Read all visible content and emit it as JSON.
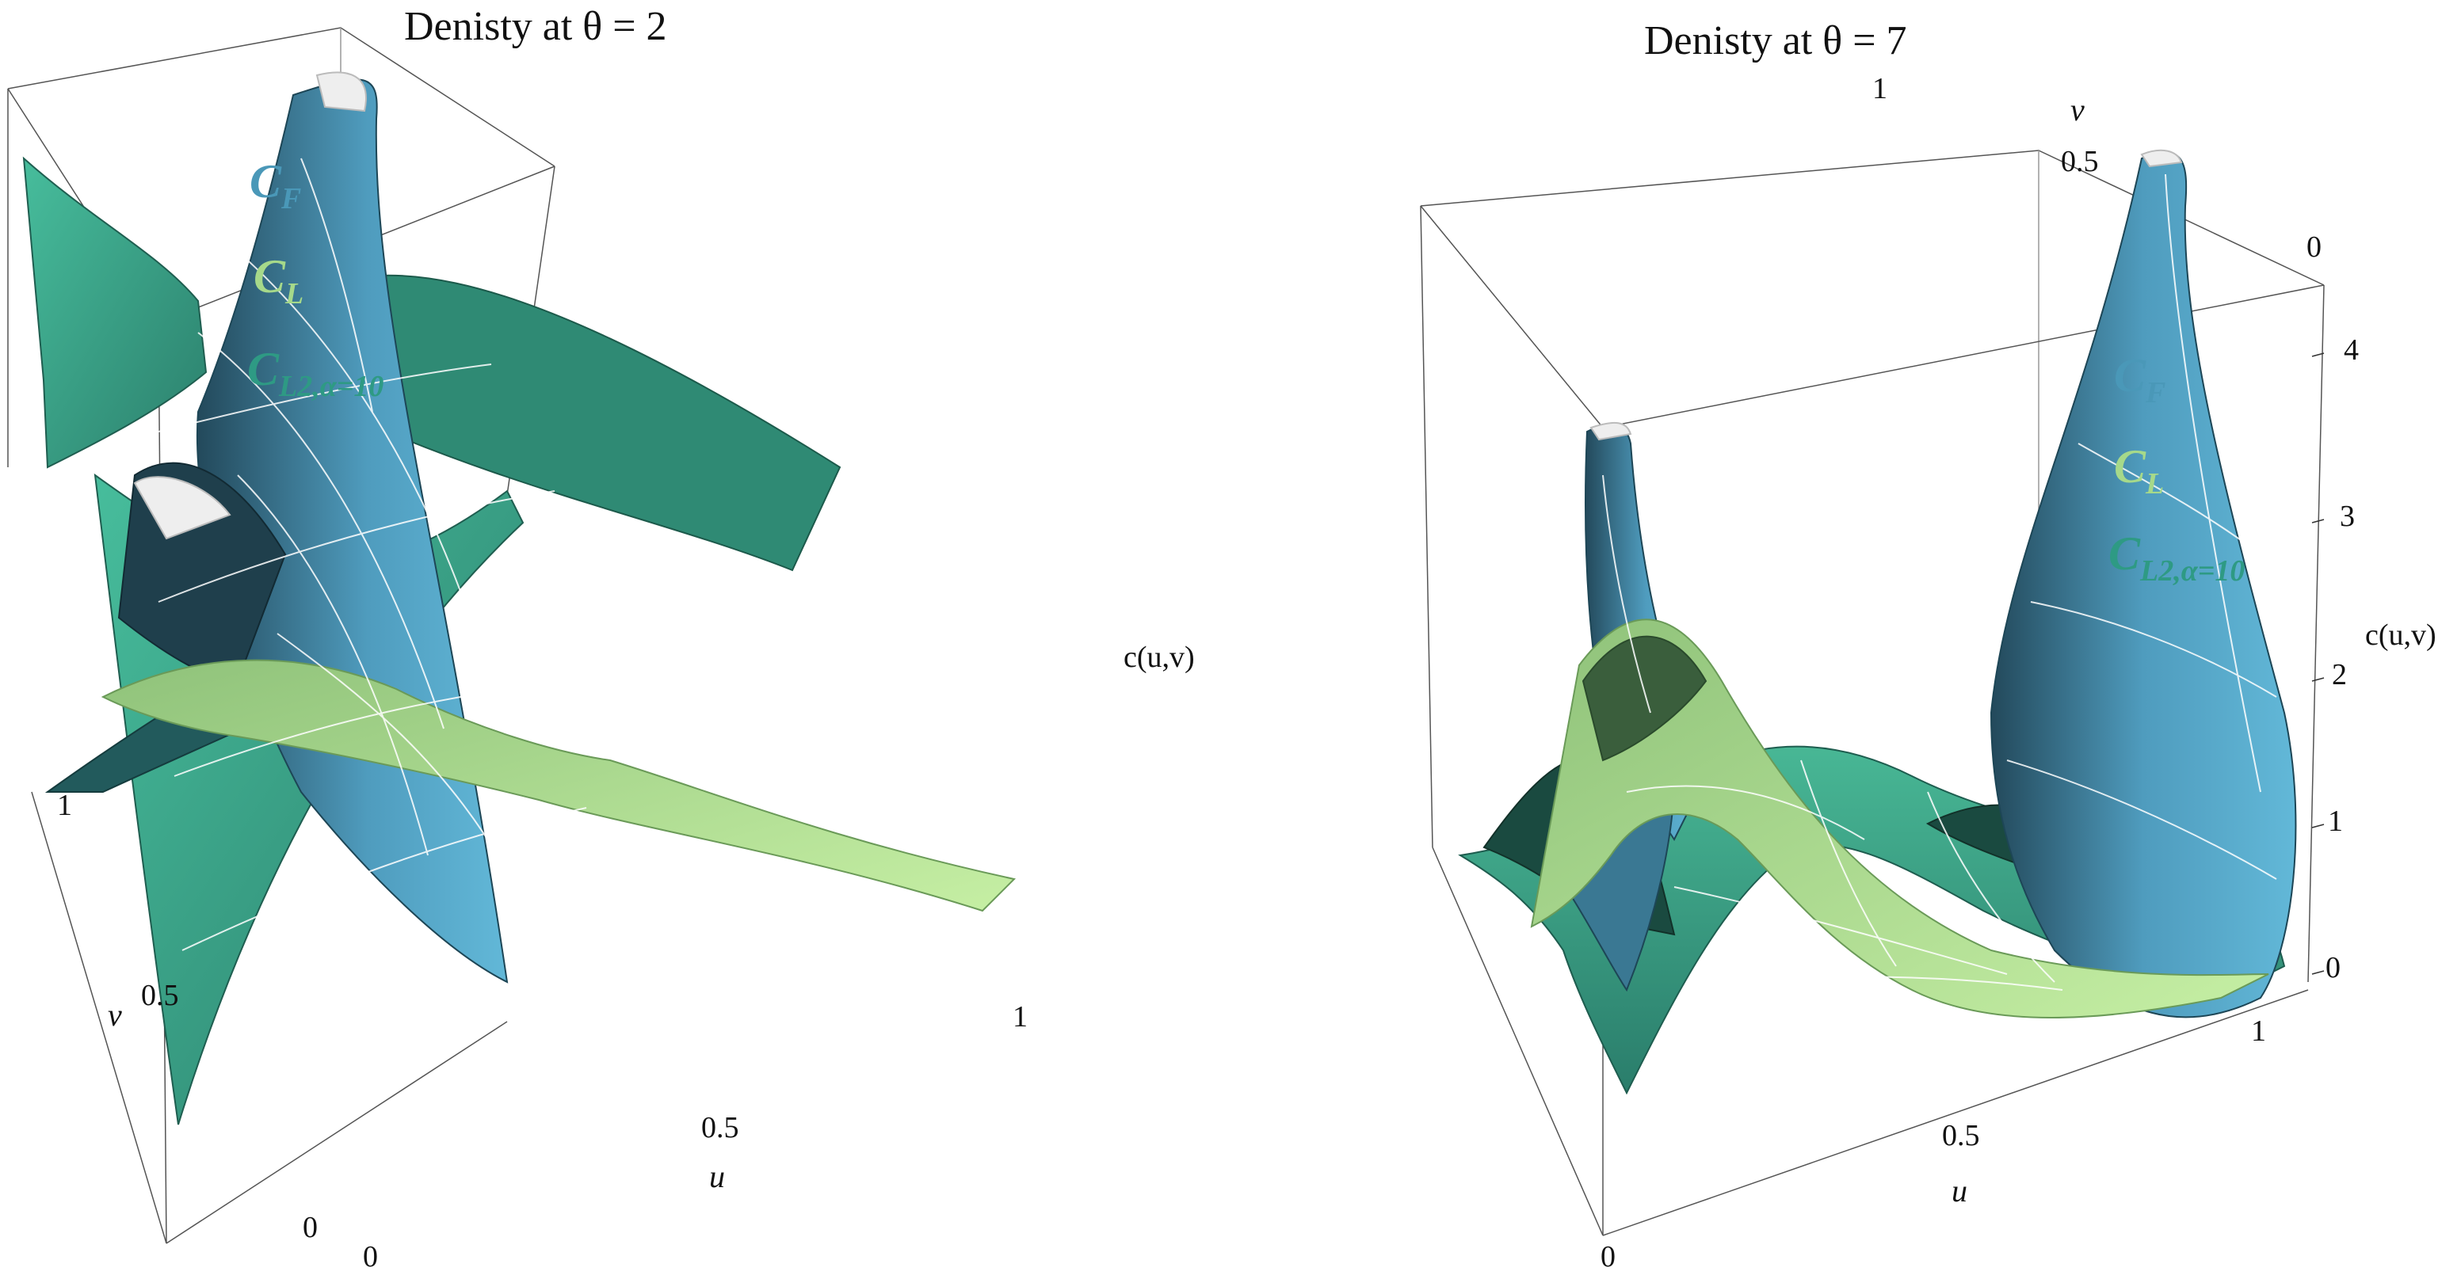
{
  "chart_data": [
    {
      "type": "surface3d",
      "title": "Denisty at θ = 2",
      "xlabel": "u",
      "ylabel": "v",
      "zlabel": "c(u,v)",
      "u_ticks": [
        "0",
        "0.5",
        "1"
      ],
      "v_ticks": [
        "0",
        "0.5",
        "1"
      ],
      "xlim": [
        0,
        1
      ],
      "ylim": [
        0,
        1
      ],
      "legend": [
        {
          "label": "C",
          "sub": "F",
          "color": "#4a98b8"
        },
        {
          "label": "C",
          "sub": "L",
          "color": "#a6d98a"
        },
        {
          "label": "C",
          "sub": "L2,α=10",
          "color": "#2e9a84"
        }
      ]
    },
    {
      "type": "surface3d",
      "title": "Denisty at θ = 7",
      "xlabel": "u",
      "ylabel": "v",
      "zlabel": "c(u,v)",
      "u_ticks": [
        "0",
        "0.5",
        "1"
      ],
      "v_ticks": [
        "0",
        "0.5",
        "1"
      ],
      "z_ticks": [
        "0",
        "1",
        "2",
        "3",
        "4"
      ],
      "xlim": [
        0,
        1
      ],
      "ylim": [
        0,
        1
      ],
      "zlim": [
        0,
        4.2
      ],
      "legend": [
        {
          "label": "C",
          "sub": "F",
          "color": "#4a98b8"
        },
        {
          "label": "C",
          "sub": "L",
          "color": "#a6d98a"
        },
        {
          "label": "C",
          "sub": "L2,α=10",
          "color": "#2e9a84"
        }
      ]
    }
  ]
}
